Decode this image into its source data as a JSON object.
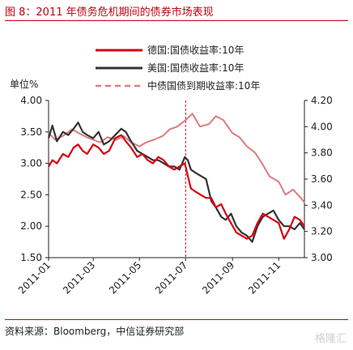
{
  "figure": {
    "title": "图 8：2011 年债务危机期间的债券市场表现",
    "source": "资料来源：Bloomberg，中信证券研究部",
    "watermark": "格隆汇"
  },
  "chart_data": {
    "type": "line",
    "ylabel": "单位%",
    "y_left_lim": [
      1.5,
      4.0
    ],
    "y_left_ticks": [
      "4.00",
      "3.50",
      "3.00",
      "2.50",
      "2.00",
      "1.50"
    ],
    "y_right_lim": [
      3.0,
      4.2
    ],
    "y_right_ticks": [
      "4.20",
      "4.00",
      "3.80",
      "3.60",
      "3.40",
      "3.20",
      "3.00"
    ],
    "x_range": [
      "2011-01-01",
      "2011-12-05"
    ],
    "x_ticks": [
      "2011-01",
      "2011-03",
      "2011-05",
      "2011-07",
      "2011-09",
      "2011-11"
    ],
    "vline": "2011-07-01",
    "legend_position": "top-right",
    "colors": {
      "germany": "#d7000f",
      "us": "#333333",
      "china": "#e07a80",
      "vline": "#d7000f"
    },
    "series": [
      {
        "name": "德国:国债收益率:10年",
        "axis": "left",
        "style": "solid",
        "x": [
          "2011-01-01",
          "2011-01-06",
          "2011-01-12",
          "2011-01-20",
          "2011-01-27",
          "2011-02-03",
          "2011-02-09",
          "2011-02-15",
          "2011-02-21",
          "2011-03-01",
          "2011-03-08",
          "2011-03-15",
          "2011-03-22",
          "2011-03-30",
          "2011-04-07",
          "2011-04-13",
          "2011-04-20",
          "2011-04-28",
          "2011-05-05",
          "2011-05-12",
          "2011-05-19",
          "2011-05-26",
          "2011-06-02",
          "2011-06-09",
          "2011-06-16",
          "2011-06-23",
          "2011-06-30",
          "2011-07-04",
          "2011-07-08",
          "2011-07-14",
          "2011-07-21",
          "2011-07-28",
          "2011-08-04",
          "2011-08-10",
          "2011-08-17",
          "2011-08-23",
          "2011-08-30",
          "2011-09-06",
          "2011-09-13",
          "2011-09-20",
          "2011-09-27",
          "2011-10-04",
          "2011-10-11",
          "2011-10-18",
          "2011-10-25",
          "2011-11-01",
          "2011-11-08",
          "2011-11-15",
          "2011-11-22",
          "2011-11-29",
          "2011-12-05"
        ],
        "values": [
          2.95,
          3.05,
          3.0,
          3.15,
          3.1,
          3.25,
          3.3,
          3.2,
          3.15,
          3.3,
          3.25,
          3.15,
          3.2,
          3.4,
          3.45,
          3.35,
          3.25,
          3.1,
          3.15,
          3.05,
          3.0,
          3.1,
          3.05,
          2.95,
          2.9,
          2.95,
          3.0,
          2.8,
          2.6,
          2.55,
          2.5,
          2.45,
          2.45,
          2.3,
          2.35,
          2.2,
          2.05,
          1.9,
          1.85,
          1.8,
          1.85,
          2.05,
          2.2,
          2.15,
          2.1,
          2.05,
          1.8,
          1.95,
          2.15,
          2.1,
          2.0
        ]
      },
      {
        "name": "美国:国债收益率:10年",
        "axis": "left",
        "style": "solid",
        "x": [
          "2011-01-01",
          "2011-01-06",
          "2011-01-12",
          "2011-01-20",
          "2011-01-27",
          "2011-02-03",
          "2011-02-09",
          "2011-02-15",
          "2011-02-21",
          "2011-03-01",
          "2011-03-08",
          "2011-03-15",
          "2011-03-22",
          "2011-03-30",
          "2011-04-07",
          "2011-04-13",
          "2011-04-20",
          "2011-04-28",
          "2011-05-05",
          "2011-05-12",
          "2011-05-19",
          "2011-05-26",
          "2011-06-02",
          "2011-06-09",
          "2011-06-16",
          "2011-06-23",
          "2011-06-30",
          "2011-07-04",
          "2011-07-08",
          "2011-07-14",
          "2011-07-21",
          "2011-07-28",
          "2011-08-04",
          "2011-08-10",
          "2011-08-17",
          "2011-08-23",
          "2011-08-30",
          "2011-09-06",
          "2011-09-13",
          "2011-09-20",
          "2011-09-27",
          "2011-10-04",
          "2011-10-11",
          "2011-10-18",
          "2011-10-25",
          "2011-11-01",
          "2011-11-08",
          "2011-11-15",
          "2011-11-22",
          "2011-11-29",
          "2011-12-05"
        ],
        "values": [
          3.4,
          3.6,
          3.35,
          3.5,
          3.45,
          3.55,
          3.65,
          3.5,
          3.45,
          3.4,
          3.5,
          3.3,
          3.35,
          3.45,
          3.55,
          3.5,
          3.35,
          3.2,
          3.15,
          3.1,
          3.05,
          3.05,
          3.0,
          2.95,
          2.95,
          2.9,
          3.1,
          3.05,
          2.9,
          2.85,
          2.8,
          2.75,
          2.4,
          2.3,
          2.15,
          2.1,
          2.2,
          2.0,
          1.9,
          1.85,
          1.75,
          2.0,
          2.15,
          2.2,
          2.25,
          2.1,
          2.0,
          2.0,
          1.95,
          2.05,
          1.95
        ]
      },
      {
        "name": "中债国债到期收益率:10年",
        "axis": "right",
        "style": "dashed",
        "x": [
          "2011-01-01",
          "2011-01-10",
          "2011-01-20",
          "2011-02-01",
          "2011-02-10",
          "2011-02-20",
          "2011-03-01",
          "2011-03-10",
          "2011-03-20",
          "2011-04-01",
          "2011-04-10",
          "2011-04-20",
          "2011-05-01",
          "2011-05-10",
          "2011-05-20",
          "2011-06-01",
          "2011-06-10",
          "2011-06-20",
          "2011-07-01",
          "2011-07-10",
          "2011-07-20",
          "2011-08-01",
          "2011-08-10",
          "2011-08-20",
          "2011-09-01",
          "2011-09-10",
          "2011-09-20",
          "2011-10-01",
          "2011-10-10",
          "2011-10-20",
          "2011-11-01",
          "2011-11-10",
          "2011-11-20",
          "2011-12-01",
          "2011-12-05"
        ],
        "values": [
          3.95,
          3.9,
          3.93,
          3.98,
          3.95,
          3.92,
          3.9,
          3.88,
          3.92,
          3.9,
          3.93,
          3.88,
          3.85,
          3.88,
          3.9,
          3.93,
          3.98,
          4.0,
          4.05,
          4.1,
          4.0,
          4.02,
          4.08,
          4.05,
          3.95,
          3.92,
          3.85,
          3.8,
          3.72,
          3.62,
          3.58,
          3.48,
          3.52,
          3.45,
          3.42
        ]
      }
    ]
  }
}
